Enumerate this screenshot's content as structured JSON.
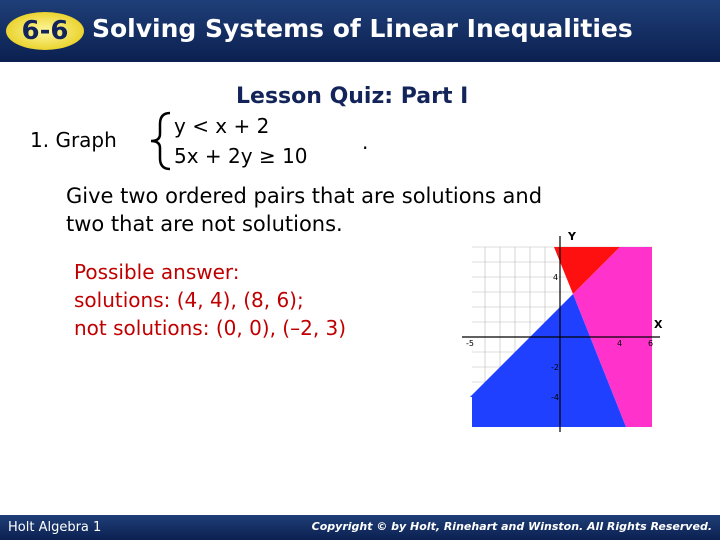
{
  "header": {
    "badge": "6-6",
    "title": "Solving Systems of Linear Inequalities"
  },
  "quiz": {
    "title": "Lesson Quiz: Part I",
    "problem_label": "1. Graph",
    "inequalities": [
      "y < x + 2",
      "5x + 2y ≥ 10"
    ],
    "end_mark": ".",
    "prompt": [
      "Give two ordered pairs that are solutions and",
      "two that are not solutions."
    ],
    "answer": [
      "Possible answer:",
      "solutions: (4, 4), (8, 6);",
      "not solutions: (0, 0), (–2, 3)"
    ]
  },
  "graph": {
    "x_label": "X",
    "y_label": "Y",
    "x_tick_labels": [
      "-5",
      "4",
      "6"
    ],
    "y_tick_labels": [
      "4",
      "-2",
      "-4"
    ]
  },
  "footer": {
    "left": "Holt Algebra 1",
    "right": "Copyright © by Holt, Rinehart and Winston. All Rights Reserved."
  }
}
